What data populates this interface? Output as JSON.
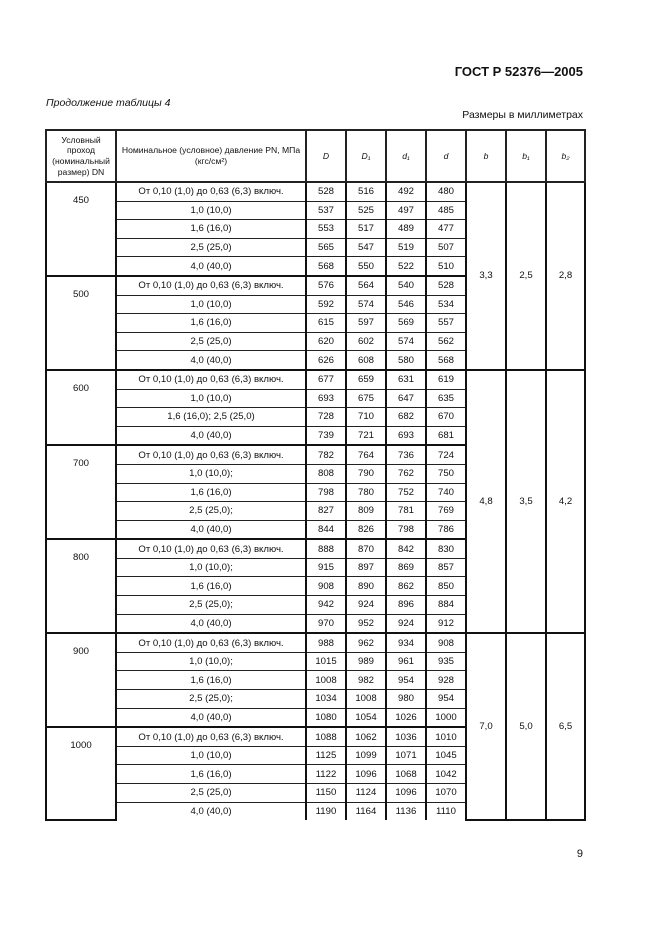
{
  "header": {
    "standard": "ГОСТ Р 52376—2005",
    "continuation": "Продолжение таблицы 4",
    "units": "Размеры в миллиметрах"
  },
  "columns": {
    "dn": "Условный проход (номинальный размер) DN",
    "pn": "Номинальное (условное) давление PN, МПа (кгс/см²)",
    "D": "D",
    "D1": "D₁",
    "d1": "d₁",
    "d": "d",
    "b": "b",
    "b1": "b₁",
    "b2": "b₂"
  },
  "groups": [
    {
      "dn": "450",
      "rows": [
        [
          "От 0,10 (1,0) до 0,63 (6,3) включ.",
          "528",
          "516",
          "492",
          "480"
        ],
        [
          "1,0 (10,0)",
          "537",
          "525",
          "497",
          "485"
        ],
        [
          "1,6 (16,0)",
          "553",
          "517",
          "489",
          "477"
        ],
        [
          "2,5 (25,0)",
          "565",
          "547",
          "519",
          "507"
        ],
        [
          "4,0 (40,0)",
          "568",
          "550",
          "522",
          "510"
        ]
      ]
    },
    {
      "dn": "500",
      "rows": [
        [
          "От 0,10 (1,0) до 0,63 (6,3) включ.",
          "576",
          "564",
          "540",
          "528"
        ],
        [
          "1,0 (10,0)",
          "592",
          "574",
          "546",
          "534"
        ],
        [
          "1,6 (16,0)",
          "615",
          "597",
          "569",
          "557"
        ],
        [
          "2,5 (25,0)",
          "620",
          "602",
          "574",
          "562"
        ],
        [
          "4,0 (40,0)",
          "626",
          "608",
          "580",
          "568"
        ]
      ]
    },
    {
      "dn": "600",
      "rows": [
        [
          "От 0,10 (1,0) до 0,63 (6,3) включ.",
          "677",
          "659",
          "631",
          "619"
        ],
        [
          "1,0 (10,0)",
          "693",
          "675",
          "647",
          "635"
        ],
        [
          "1,6 (16,0); 2,5 (25,0)",
          "728",
          "710",
          "682",
          "670"
        ],
        [
          "4,0 (40,0)",
          "739",
          "721",
          "693",
          "681"
        ]
      ]
    },
    {
      "dn": "700",
      "rows": [
        [
          "От 0,10 (1,0) до 0,63 (6,3) включ.",
          "782",
          "764",
          "736",
          "724"
        ],
        [
          "1,0 (10,0);",
          "808",
          "790",
          "762",
          "750"
        ],
        [
          "1,6 (16,0)",
          "798",
          "780",
          "752",
          "740"
        ],
        [
          "2,5 (25,0);",
          "827",
          "809",
          "781",
          "769"
        ],
        [
          "4,0 (40,0)",
          "844",
          "826",
          "798",
          "786"
        ]
      ]
    },
    {
      "dn": "800",
      "rows": [
        [
          "От 0,10 (1,0) до 0,63 (6,3) включ.",
          "888",
          "870",
          "842",
          "830"
        ],
        [
          "1,0 (10,0);",
          "915",
          "897",
          "869",
          "857"
        ],
        [
          "1,6 (16,0)",
          "908",
          "890",
          "862",
          "850"
        ],
        [
          "2,5 (25,0);",
          "942",
          "924",
          "896",
          "884"
        ],
        [
          "4,0 (40,0)",
          "970",
          "952",
          "924",
          "912"
        ]
      ]
    },
    {
      "dn": "900",
      "rows": [
        [
          "От 0,10 (1,0) до 0,63 (6,3) включ.",
          "988",
          "962",
          "934",
          "908"
        ],
        [
          "1,0 (10,0);",
          "1015",
          "989",
          "961",
          "935"
        ],
        [
          "1,6 (16,0)",
          "1008",
          "982",
          "954",
          "928"
        ],
        [
          "2,5 (25,0);",
          "1034",
          "1008",
          "980",
          "954"
        ],
        [
          "4,0 (40,0)",
          "1080",
          "1054",
          "1026",
          "1000"
        ]
      ]
    },
    {
      "dn": "1000",
      "rows": [
        [
          "От 0,10 (1,0) до 0,63 (6,3) включ.",
          "1088",
          "1062",
          "1036",
          "1010"
        ],
        [
          "1,0 (10,0)",
          "1125",
          "1099",
          "1071",
          "1045"
        ],
        [
          "1,6 (16,0)",
          "1122",
          "1096",
          "1068",
          "1042"
        ],
        [
          "2,5 (25,0)",
          "1150",
          "1124",
          "1096",
          "1070"
        ],
        [
          "4,0 (40,0)",
          "1190",
          "1164",
          "1136",
          "1110"
        ]
      ]
    }
  ],
  "b_blocks": [
    {
      "groups": 2,
      "b": "3,3",
      "b1": "2,5",
      "b2": "2,8"
    },
    {
      "groups": 3,
      "b": "4,8",
      "b1": "3,5",
      "b2": "4,2"
    },
    {
      "groups": 2,
      "b": "7,0",
      "b1": "5,0",
      "b2": "6,5"
    }
  ],
  "page_number": "9"
}
